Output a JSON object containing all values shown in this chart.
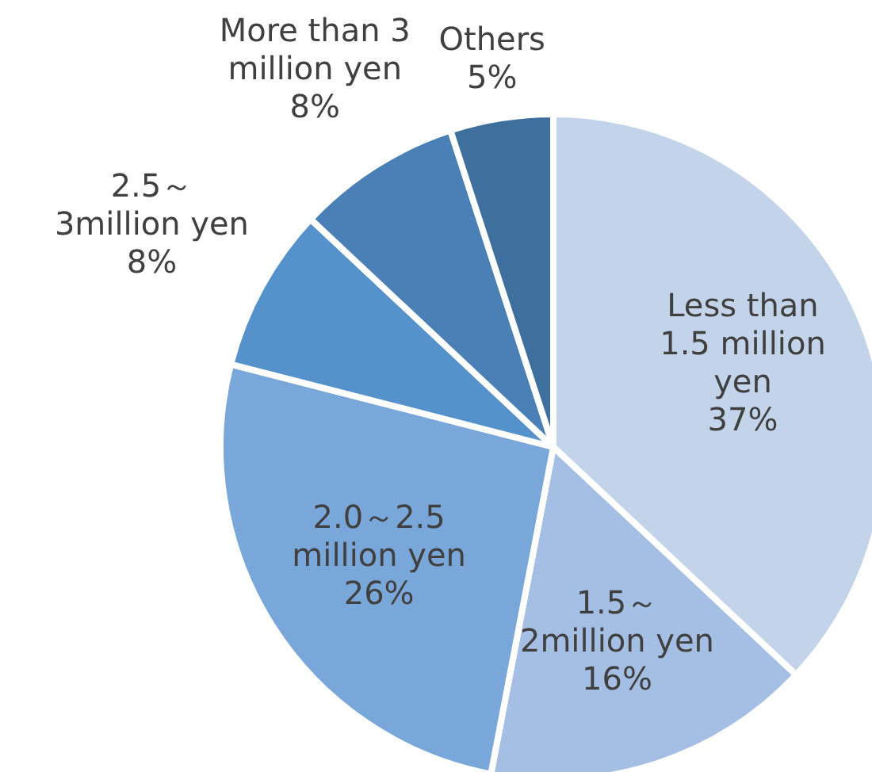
{
  "chart_data": {
    "type": "pie",
    "categories": [
      "Less than\n1.5 million\nyen",
      "1.5～\n2million yen",
      "2.0～2.5\nmillion yen",
      "2.5～\n3million yen",
      "More than 3\nmillion yen",
      "Others"
    ],
    "values": [
      37,
      16,
      26,
      8,
      8,
      5
    ],
    "value_labels": [
      "37%",
      "16%",
      "26%",
      "8%",
      "8%",
      "5%"
    ],
    "colors": [
      "#c3d4ea",
      "#a4bfe3",
      "#7aa7d9",
      "#5592cb",
      "#4a80b5",
      "#3f6f9d"
    ],
    "legend": false
  }
}
